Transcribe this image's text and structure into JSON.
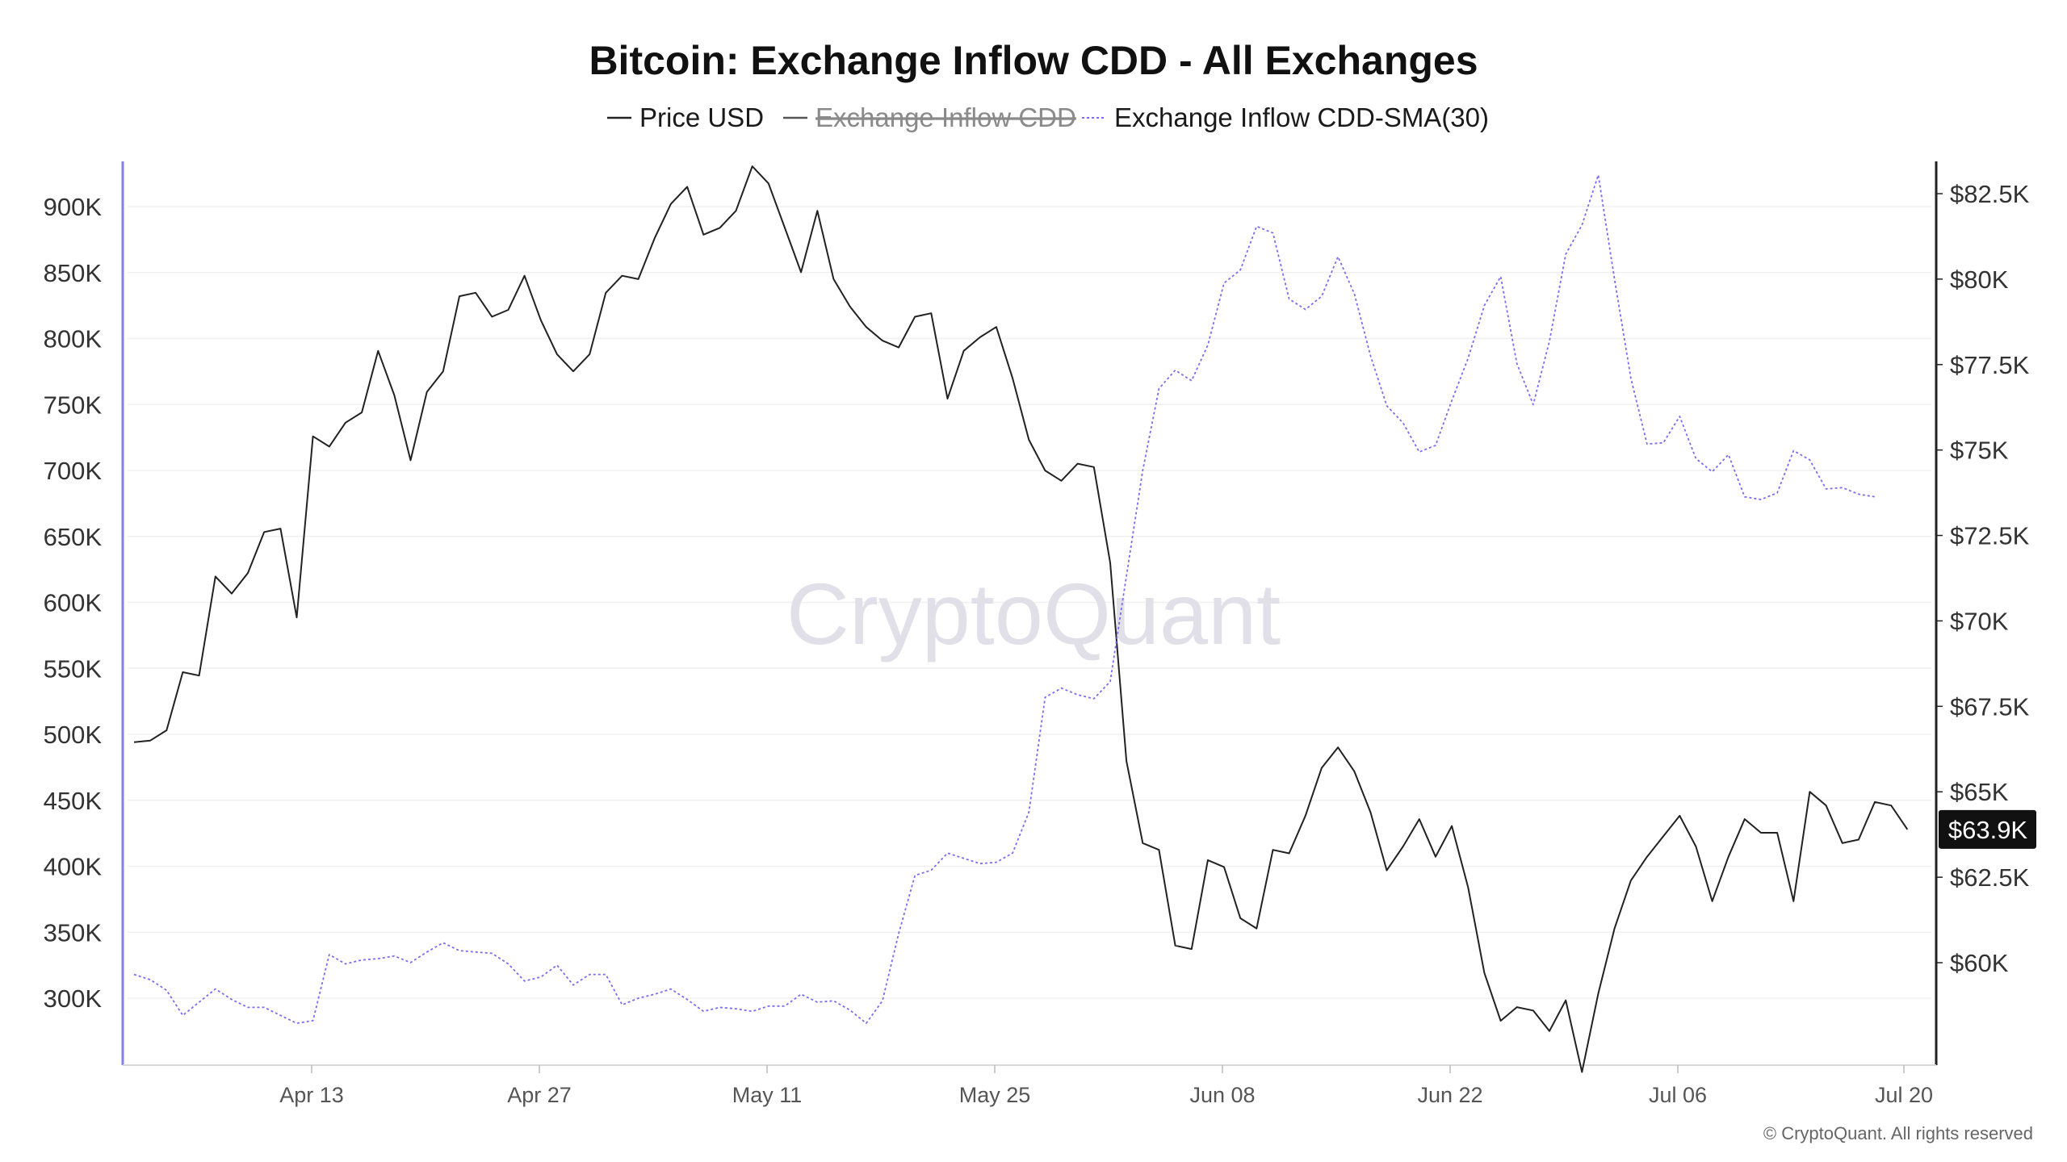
{
  "chart_data": {
    "type": "line",
    "title": "Bitcoin: Exchange Inflow CDD - All Exchanges",
    "legend": [
      {
        "name": "Price USD",
        "style": "solid",
        "color": "#222222",
        "enabled": true
      },
      {
        "name": "Exchange Inflow CDD",
        "style": "solid",
        "color": "#555555",
        "enabled": false
      },
      {
        "name": "Exchange Inflow CDD-SMA(30)",
        "style": "dotted",
        "color": "#7b6ef0",
        "enabled": true
      }
    ],
    "legend_position": "top-center",
    "watermark": "CryptoQuant",
    "copyright": "© CryptoQuant. All rights reserved",
    "x_ticks": [
      "Apr 13",
      "Apr 27",
      "May 11",
      "May 25",
      "Jun 08",
      "Jun 22",
      "Jul 06",
      "Jul 20"
    ],
    "x_range_days": [
      0,
      109
    ],
    "left_axis": {
      "ticks": [
        "300K",
        "350K",
        "400K",
        "450K",
        "500K",
        "550K",
        "600K",
        "650K",
        "700K",
        "750K",
        "800K",
        "850K",
        "900K"
      ],
      "tick_values": [
        300000,
        350000,
        400000,
        450000,
        500000,
        550000,
        600000,
        650000,
        700000,
        750000,
        800000,
        850000,
        900000
      ],
      "range": [
        250000,
        935000
      ]
    },
    "right_axis": {
      "ticks": [
        "$60K",
        "$62.5K",
        "$65K",
        "$67.5K",
        "$70K",
        "$72.5K",
        "$75K",
        "$77.5K",
        "$80K",
        "$82.5K"
      ],
      "tick_values": [
        60000,
        62500,
        65000,
        67500,
        70000,
        72500,
        75000,
        77500,
        80000,
        82500
      ],
      "range": [
        58000,
        83000
      ]
    },
    "last_price_label": "$63.9K",
    "last_price_value": 63900,
    "grid": true,
    "series": [
      {
        "name": "Price USD",
        "axis": "right",
        "values": [
          66450,
          66500,
          66800,
          68500,
          68400,
          71300,
          70800,
          71400,
          72600,
          72700,
          70100,
          75400,
          75100,
          75800,
          76100,
          77900,
          76600,
          74700,
          76700,
          77300,
          79500,
          79600,
          78900,
          79100,
          80100,
          78800,
          77800,
          77300,
          77800,
          79600,
          80100,
          80000,
          81200,
          82200,
          82700,
          81300,
          81500,
          82000,
          83300,
          82800,
          81500,
          80200,
          82000,
          80000,
          79200,
          78600,
          78200,
          78000,
          78900,
          79000,
          76500,
          77900,
          78300,
          78600,
          77100,
          75300,
          74400,
          74100,
          74600,
          74500,
          71700,
          65900,
          63500,
          63300,
          60500,
          60400,
          63000,
          62800,
          61300,
          61000,
          63300,
          63200,
          64300,
          65700,
          66300,
          65600,
          64400,
          62700,
          63400,
          64200,
          63100,
          64000,
          62200,
          59700,
          58300,
          58700,
          58600,
          58000,
          58900,
          56800,
          59100,
          61000,
          62400,
          63100,
          63700,
          64300,
          63400,
          61800,
          63100,
          64200,
          63800,
          63800,
          61800,
          65000,
          64600,
          63500,
          63600,
          64700,
          64600,
          63900
        ]
      },
      {
        "name": "Exchange Inflow CDD-SMA(30)",
        "axis": "left",
        "values": [
          318000,
          314000,
          306000,
          287000,
          297000,
          307000,
          299000,
          293000,
          293000,
          287000,
          281000,
          283000,
          333000,
          326000,
          329000,
          330000,
          332000,
          327000,
          335000,
          342000,
          336000,
          335000,
          334000,
          326000,
          313000,
          316000,
          325000,
          310000,
          318000,
          318000,
          295000,
          300000,
          303000,
          307000,
          299000,
          290000,
          293000,
          292000,
          290000,
          294000,
          294000,
          303000,
          297000,
          298000,
          291000,
          281000,
          298000,
          349000,
          393000,
          397000,
          410000,
          406000,
          402000,
          403000,
          410000,
          441000,
          528000,
          535000,
          530000,
          527000,
          540000,
          620000,
          700000,
          762000,
          776000,
          768000,
          795000,
          842000,
          852000,
          885000,
          880000,
          830000,
          822000,
          832000,
          862000,
          834000,
          787000,
          749000,
          736000,
          714000,
          719000,
          753000,
          785000,
          825000,
          847000,
          781000,
          750000,
          798000,
          864000,
          886000,
          924000,
          845000,
          770000,
          720000,
          721000,
          741000,
          709000,
          699000,
          712000,
          680000,
          678000,
          683000,
          715000,
          708000,
          686000,
          687000,
          682000,
          680000
        ]
      }
    ]
  }
}
